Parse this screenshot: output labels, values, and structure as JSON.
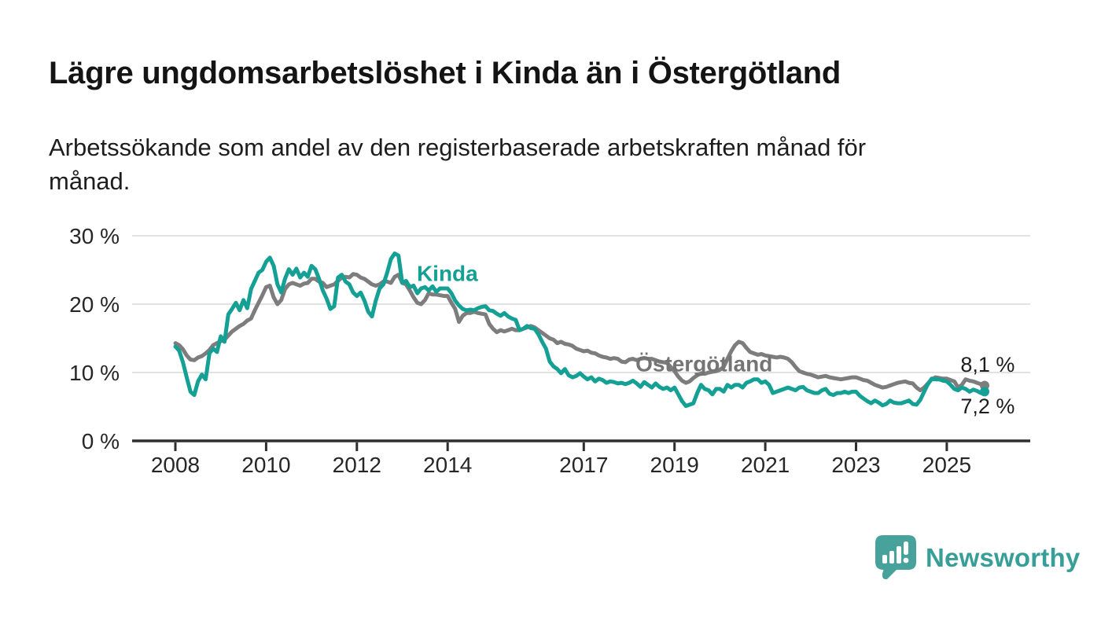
{
  "header": {
    "title": "Lägre ungdomsarbetslöshet i Kinda än i Östergötland",
    "subtitle_lines": [
      "Arbetssökande som andel av den registerbaserade arbetskraften månad för",
      "månad."
    ]
  },
  "chart_data": {
    "type": "line",
    "title": "Lägre ungdomsarbetslöshet i Kinda än i Östergötland",
    "xlabel": "",
    "ylabel": "",
    "x_start_year": 2008,
    "x_start_month": 1,
    "frequency": "monthly",
    "xlim": [
      2007.05,
      2026.85
    ],
    "ylim": [
      0,
      32
    ],
    "grid": "horizontal",
    "legend_position": "inline-labels",
    "x_ticks": [
      {
        "v": 2008,
        "label": "2008"
      },
      {
        "v": 2010,
        "label": "2010"
      },
      {
        "v": 2012,
        "label": "2012"
      },
      {
        "v": 2014,
        "label": "2014"
      },
      {
        "v": 2017,
        "label": "2017"
      },
      {
        "v": 2019,
        "label": "2019"
      },
      {
        "v": 2021,
        "label": "2021"
      },
      {
        "v": 2023,
        "label": "2023"
      },
      {
        "v": 2025,
        "label": "2025"
      }
    ],
    "y_ticks": [
      {
        "v": 0,
        "label": "0 %"
      },
      {
        "v": 10,
        "label": "10 %"
      },
      {
        "v": 20,
        "label": "20 %"
      },
      {
        "v": 30,
        "label": "30 %"
      }
    ],
    "series": [
      {
        "name": "Kinda",
        "color": "#14a094",
        "end_label": "7,2 %",
        "end_value": 7.2,
        "values": [
          13.8,
          13.2,
          11.5,
          9.3,
          7.2,
          6.7,
          8.7,
          9.7,
          9.0,
          12.8,
          13.5,
          13.0,
          15.3,
          14.5,
          18.5,
          19.3,
          20.2,
          19.1,
          20.6,
          19.4,
          22.2,
          23.4,
          24.6,
          25.0,
          26.2,
          26.8,
          25.6,
          22.9,
          21.7,
          23.7,
          25.1,
          24.3,
          25.2,
          23.9,
          24.6,
          24.0,
          25.6,
          25.1,
          23.7,
          22.0,
          20.8,
          19.3,
          19.7,
          23.9,
          24.3,
          23.3,
          22.9,
          21.7,
          21.2,
          21.7,
          20.5,
          18.9,
          18.2,
          20.5,
          22.3,
          22.9,
          24.6,
          26.6,
          27.4,
          27.1,
          23.1,
          23.4,
          22.5,
          22.7,
          21.6,
          22.3,
          22.5,
          22.0,
          22.6,
          21.8,
          22.3,
          22.3,
          22.3,
          21.6,
          20.5,
          19.8,
          19.3,
          19.1,
          19.2,
          19.1,
          19.4,
          19.6,
          19.7,
          19.1,
          19.0,
          18.6,
          18.3,
          18.7,
          18.2,
          17.9,
          17.7,
          16.2,
          16.4,
          16.8,
          16.5,
          16.4,
          15.6,
          14.5,
          13.5,
          11.6,
          10.9,
          10.5,
          9.9,
          10.5,
          9.6,
          9.3,
          9.5,
          9.9,
          9.4,
          9.0,
          9.3,
          8.7,
          9.1,
          8.9,
          8.5,
          8.7,
          8.6,
          8.4,
          8.5,
          8.3,
          8.5,
          8.8,
          8.4,
          7.9,
          8.6,
          8.2,
          7.8,
          8.4,
          7.9,
          7.6,
          7.8,
          7.4,
          7.8,
          6.8,
          5.8,
          5.1,
          5.3,
          5.5,
          7.0,
          8.2,
          7.6,
          7.4,
          6.8,
          7.6,
          7.6,
          7.2,
          8.2,
          7.8,
          8.2,
          8.2,
          7.8,
          8.5,
          8.7,
          9.0,
          9.0,
          8.5,
          8.7,
          8.2,
          7.0,
          7.2,
          7.4,
          7.6,
          7.8,
          7.6,
          7.4,
          7.8,
          7.9,
          7.4,
          7.2,
          7.0,
          7.0,
          7.4,
          7.6,
          6.9,
          6.7,
          7.0,
          7.0,
          7.2,
          7.0,
          7.2,
          7.2,
          6.6,
          6.2,
          5.8,
          5.5,
          5.9,
          5.6,
          5.2,
          5.4,
          5.9,
          5.6,
          5.5,
          5.5,
          5.7,
          5.9,
          5.4,
          5.3,
          6.0,
          7.2,
          8.3,
          9.1,
          9.0,
          9.0,
          8.8,
          8.7,
          8.2,
          7.6,
          7.4,
          7.8,
          7.6,
          7.2,
          7.5,
          7.3,
          7.0,
          7.2
        ]
      },
      {
        "name": "Östergötland",
        "color": "#7d7d7d",
        "end_label": "8,1 %",
        "end_value": 8.1,
        "values": [
          14.3,
          14.0,
          13.4,
          12.5,
          11.9,
          11.8,
          12.2,
          12.4,
          12.8,
          13.3,
          14.0,
          14.3,
          14.6,
          14.8,
          15.4,
          16.0,
          16.4,
          16.8,
          17.1,
          17.6,
          17.9,
          19.1,
          20.2,
          21.3,
          22.5,
          22.7,
          21.0,
          20.0,
          20.6,
          22.2,
          22.9,
          23.1,
          22.9,
          22.7,
          23.0,
          23.1,
          23.7,
          23.7,
          23.3,
          23.1,
          22.5,
          22.7,
          22.9,
          23.4,
          23.9,
          24.0,
          23.9,
          24.4,
          24.3,
          23.9,
          23.7,
          23.3,
          22.9,
          22.7,
          22.9,
          23.3,
          23.3,
          23.1,
          24.0,
          24.3,
          23.1,
          22.9,
          22.0,
          21.0,
          20.2,
          20.0,
          20.6,
          21.6,
          21.4,
          21.4,
          21.3,
          21.2,
          21.2,
          20.2,
          19.3,
          17.4,
          18.3,
          18.7,
          18.7,
          18.9,
          18.7,
          18.6,
          18.5,
          17.1,
          16.4,
          15.9,
          16.2,
          16.0,
          16.2,
          16.4,
          16.2,
          16.2,
          16.4,
          16.6,
          16.8,
          16.6,
          16.2,
          15.8,
          15.4,
          15.0,
          14.8,
          14.3,
          14.5,
          14.2,
          14.1,
          13.9,
          13.5,
          13.3,
          13.1,
          13.2,
          12.9,
          12.8,
          12.5,
          12.3,
          12.2,
          12.0,
          12.1,
          12.0,
          11.6,
          11.5,
          11.9,
          12.0,
          11.8,
          12.0,
          12.1,
          12.0,
          12.0,
          11.8,
          11.6,
          11.5,
          11.4,
          10.8,
          10.2,
          9.4,
          8.8,
          8.5,
          8.7,
          9.2,
          9.6,
          9.9,
          9.8,
          10.0,
          10.1,
          10.2,
          10.4,
          10.8,
          12.0,
          13.1,
          14.0,
          14.5,
          14.3,
          13.6,
          13.0,
          12.8,
          12.6,
          12.7,
          12.5,
          12.4,
          12.3,
          12.2,
          12.3,
          12.2,
          12.0,
          11.5,
          10.8,
          10.2,
          10.0,
          9.8,
          9.7,
          9.5,
          9.3,
          9.4,
          9.5,
          9.3,
          9.2,
          9.1,
          9.0,
          9.1,
          9.2,
          9.3,
          9.3,
          9.1,
          8.9,
          8.8,
          8.5,
          8.2,
          8.0,
          7.8,
          7.9,
          8.1,
          8.3,
          8.5,
          8.6,
          8.7,
          8.5,
          8.4,
          7.8,
          7.4,
          7.8,
          8.4,
          9.0,
          9.3,
          9.2,
          9.1,
          9.1,
          8.9,
          8.7,
          7.8,
          8.2,
          9.0,
          8.8,
          8.7,
          8.5,
          8.3,
          8.1
        ]
      }
    ],
    "annotations": [
      {
        "text": "Kinda",
        "x_year": 2013.32,
        "y_value": 23.4,
        "color": "#14a094",
        "size": 28,
        "weight": "bold",
        "anchor": "start"
      },
      {
        "text": "Östergötland",
        "x_year": 2018.14,
        "y_value": 10.2,
        "color": "#747474",
        "size": 28,
        "weight": "bold",
        "anchor": "start"
      },
      {
        "text": "8,1 %",
        "x_year": 2026.5,
        "y_value": 10.1,
        "color": "#1d1d1d",
        "size": 27,
        "weight": "normal",
        "anchor": "end"
      },
      {
        "text": "7,2 %",
        "x_year": 2026.5,
        "y_value": 4.0,
        "color": "#1d1d1d",
        "size": 27,
        "weight": "normal",
        "anchor": "end"
      }
    ],
    "colors": {
      "axis": "#2e2e2e",
      "gridline": "#d9d9d9",
      "tick_text": "#262626"
    }
  },
  "branding": {
    "name": "Newsworthy",
    "color": "#379e98",
    "icon": "newsworthy-bars-speech-bubble",
    "icon_color": "#46a29b"
  }
}
